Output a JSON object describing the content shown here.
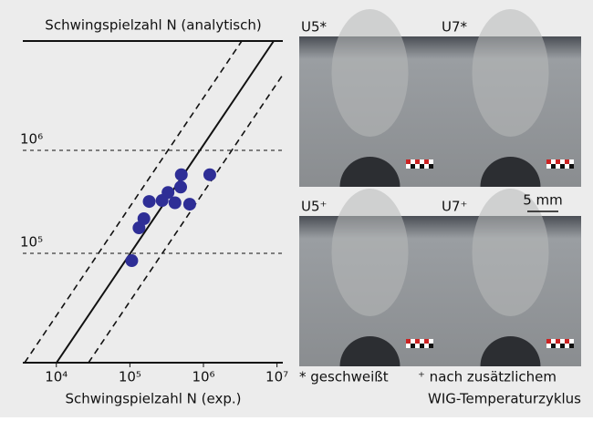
{
  "chart_data": {
    "type": "scatter",
    "title": "Schwingspielzahl N (analytisch)",
    "x_label": "Schwingspielzahl N (exp.)",
    "x": [
      106000,
      133000,
      155000,
      183000,
      274000,
      330000,
      410000,
      490000,
      500000,
      650000,
      1220000
    ],
    "values": [
      85000,
      177000,
      217000,
      319000,
      326000,
      390000,
      310000,
      440000,
      580000,
      300000,
      580000
    ],
    "color": "#2e2e96",
    "log_x": true,
    "log_y": true,
    "xlim": [
      3500,
      12000000
    ],
    "ylim": [
      8700,
      11500000
    ],
    "xticks": [
      {
        "value": 10000,
        "label": "10⁴"
      },
      {
        "value": 100000,
        "label": "10⁵"
      },
      {
        "value": 1000000,
        "label": "10⁶"
      },
      {
        "value": 10000000,
        "label": "10⁷"
      }
    ],
    "yticks": [
      {
        "value": 100000,
        "label": "10⁵"
      },
      {
        "value": 1000000,
        "label": "10⁶"
      }
    ],
    "grid": true
  },
  "photos": [
    {
      "label": "U5*"
    },
    {
      "label": "U7*"
    },
    {
      "label": "U5⁺"
    },
    {
      "label": "U7⁺"
    }
  ],
  "scale_label": "5 mm",
  "footnotes": [
    "* geschweißt",
    "⁺ nach zusätzlichem",
    "WIG-Temperaturzyklus"
  ]
}
